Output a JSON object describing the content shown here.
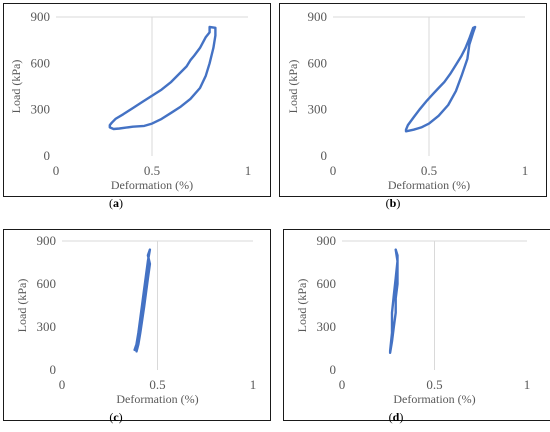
{
  "captions": [
    "a",
    "b",
    "c",
    "d"
  ],
  "chart_data": [
    {
      "type": "line",
      "caption": "a",
      "xlabel": "Deformation (%)",
      "ylabel": "Load (kPa)",
      "xlim": [
        0,
        1
      ],
      "ylim": [
        0,
        900
      ],
      "xticks": [
        "0",
        "0.5",
        "1"
      ],
      "yticks": [
        "0",
        "300",
        "600",
        "900"
      ],
      "grid": "major gridlines at x=0.5 and y=900",
      "color": "#4472C4",
      "x": [
        0.3,
        0.33,
        0.4,
        0.46,
        0.5,
        0.55,
        0.6,
        0.65,
        0.7,
        0.75,
        0.78,
        0.8,
        0.82,
        0.83,
        0.83,
        0.8,
        0.8,
        0.78,
        0.75,
        0.72,
        0.7,
        0.68,
        0.64,
        0.6,
        0.55,
        0.5,
        0.45,
        0.4,
        0.35,
        0.31,
        0.29,
        0.28,
        0.28,
        0.3
      ],
      "y": [
        175,
        178,
        190,
        195,
        210,
        240,
        280,
        320,
        370,
        440,
        520,
        600,
        700,
        780,
        830,
        835,
        800,
        770,
        700,
        650,
        620,
        580,
        530,
        480,
        430,
        390,
        350,
        310,
        270,
        240,
        215,
        200,
        185,
        175
      ]
    },
    {
      "type": "line",
      "caption": "b",
      "xlabel": "Deformation (%)",
      "ylabel": "Load (kPa)",
      "xlim": [
        0,
        1
      ],
      "ylim": [
        0,
        900
      ],
      "xticks": [
        "0",
        "0.5",
        "1"
      ],
      "yticks": [
        "0",
        "300",
        "600",
        "900"
      ],
      "grid": "major gridlines at x=0.5 and y=900",
      "color": "#4472C4",
      "x": [
        0.38,
        0.42,
        0.46,
        0.5,
        0.55,
        0.6,
        0.64,
        0.67,
        0.7,
        0.71,
        0.73,
        0.74,
        0.73,
        0.71,
        0.69,
        0.67,
        0.64,
        0.61,
        0.58,
        0.55,
        0.52,
        0.49,
        0.45,
        0.42,
        0.39,
        0.38,
        0.38
      ],
      "y": [
        160,
        170,
        185,
        210,
        260,
        330,
        420,
        520,
        630,
        720,
        800,
        835,
        830,
        760,
        700,
        650,
        590,
        530,
        480,
        440,
        400,
        360,
        300,
        250,
        200,
        170,
        160
      ]
    },
    {
      "type": "line",
      "caption": "c",
      "xlabel": "Deformation (%)",
      "ylabel": "Load (kPa)",
      "xlim": [
        0,
        1
      ],
      "ylim": [
        0,
        900
      ],
      "xticks": [
        "0",
        "0.5",
        "1"
      ],
      "yticks": [
        "0",
        "300",
        "600",
        "900"
      ],
      "grid": "major gridlines at x=0.5 and y=900",
      "color": "#4472C4",
      "x": [
        0.39,
        0.4,
        0.41,
        0.42,
        0.43,
        0.44,
        0.45,
        0.46,
        0.45,
        0.46,
        0.45,
        0.44,
        0.43,
        0.42,
        0.41,
        0.4,
        0.39,
        0.38
      ],
      "y": [
        130,
        180,
        260,
        350,
        440,
        540,
        640,
        740,
        800,
        840,
        760,
        660,
        560,
        460,
        360,
        260,
        180,
        140
      ]
    },
    {
      "type": "line",
      "caption": "d",
      "xlabel": "Deformation (%)",
      "ylabel": "Load (kPa)",
      "xlim": [
        0,
        1
      ],
      "ylim": [
        0,
        900
      ],
      "xticks": [
        "0",
        "0.5",
        "1"
      ],
      "yticks": [
        "0",
        "300",
        "600",
        "900"
      ],
      "grid": "major gridlines at x=0.5 and y=900",
      "color": "#4472C4",
      "x": [
        0.26,
        0.27,
        0.28,
        0.29,
        0.29,
        0.3,
        0.3,
        0.3,
        0.29,
        0.3,
        0.29,
        0.28,
        0.27,
        0.27,
        0.26
      ],
      "y": [
        120,
        200,
        300,
        400,
        500,
        600,
        700,
        800,
        840,
        760,
        640,
        520,
        400,
        260,
        130
      ]
    }
  ]
}
